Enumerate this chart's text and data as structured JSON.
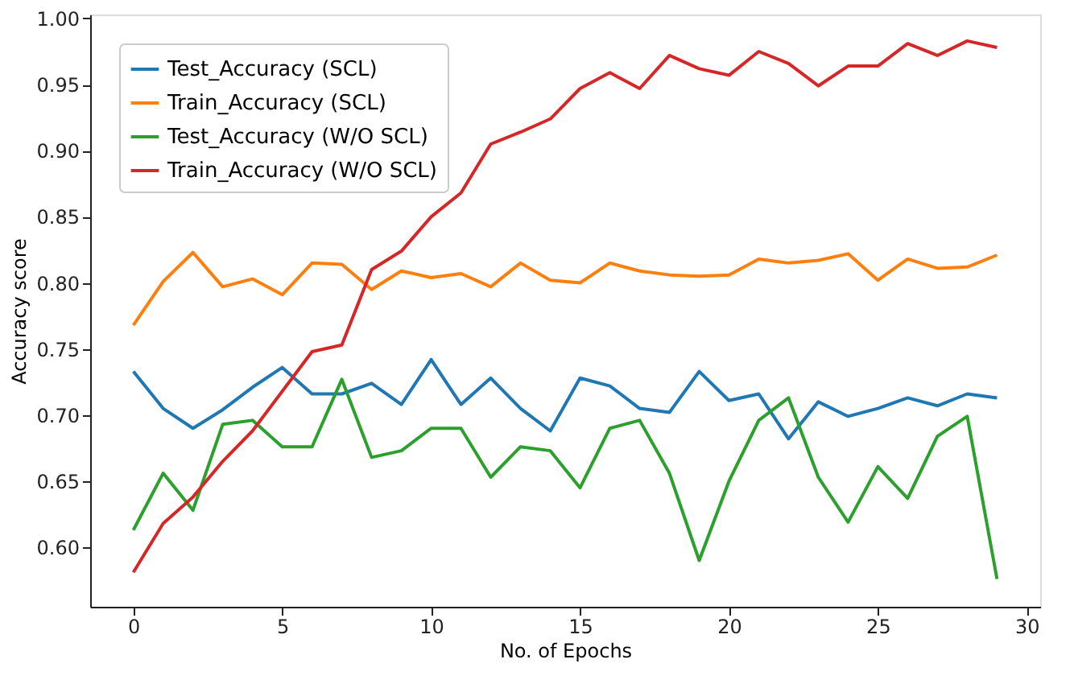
{
  "chart_data": {
    "type": "line",
    "xlabel": "No. of Epochs",
    "ylabel": "Accuracy score",
    "x": [
      0,
      1,
      2,
      3,
      4,
      5,
      6,
      7,
      8,
      9,
      10,
      11,
      12,
      13,
      14,
      15,
      16,
      17,
      18,
      19,
      20,
      21,
      22,
      23,
      24,
      25,
      26,
      27,
      28,
      29
    ],
    "xlim": [
      -1.45,
      30.45
    ],
    "xticks": [
      0,
      5,
      10,
      15,
      20,
      25,
      30
    ],
    "ylim": [
      0.555,
      1.003
    ],
    "yticks": [
      {
        "value": 0.6,
        "label": "0.60"
      },
      {
        "value": 0.65,
        "label": "0.65"
      },
      {
        "value": 0.7,
        "label": "0.70"
      },
      {
        "value": 0.75,
        "label": "0.75"
      },
      {
        "value": 0.8,
        "label": "0.80"
      },
      {
        "value": 0.85,
        "label": "0.85"
      },
      {
        "value": 0.9,
        "label": "0.90"
      },
      {
        "value": 0.95,
        "label": "0.95"
      },
      {
        "value": 1.0,
        "label": "1.00"
      }
    ],
    "grid": false,
    "legend": "top left",
    "marker": "none",
    "line_style": "solid",
    "series": [
      {
        "name": "Test_Accuracy (SCL)",
        "color": "#1f77b4",
        "values": [
          0.733,
          0.705,
          0.69,
          0.704,
          0.721,
          0.736,
          0.716,
          0.716,
          0.724,
          0.708,
          0.742,
          0.708,
          0.728,
          0.705,
          0.688,
          0.728,
          0.722,
          0.705,
          0.702,
          0.733,
          0.711,
          0.716,
          0.682,
          0.71,
          0.699,
          0.705,
          0.713,
          0.707,
          0.716,
          0.713
        ]
      },
      {
        "name": "Train_Accuracy (SCL)",
        "color": "#ff7f0e",
        "values": [
          0.768,
          0.801,
          0.823,
          0.797,
          0.803,
          0.791,
          0.815,
          0.814,
          0.795,
          0.809,
          0.804,
          0.807,
          0.797,
          0.815,
          0.802,
          0.8,
          0.815,
          0.809,
          0.806,
          0.805,
          0.806,
          0.818,
          0.815,
          0.817,
          0.822,
          0.802,
          0.818,
          0.811,
          0.812,
          0.821
        ]
      },
      {
        "name": "Test_Accuracy (W/O SCL)",
        "color": "#2ca02c",
        "values": [
          0.613,
          0.656,
          0.628,
          0.693,
          0.696,
          0.676,
          0.676,
          0.727,
          0.668,
          0.673,
          0.69,
          0.69,
          0.653,
          0.676,
          0.673,
          0.645,
          0.69,
          0.696,
          0.656,
          0.59,
          0.65,
          0.696,
          0.713,
          0.653,
          0.619,
          0.661,
          0.637,
          0.684,
          0.699,
          0.576
        ]
      },
      {
        "name": "Train_Accuracy (W/O SCL)",
        "color": "#d62728",
        "values": [
          0.581,
          0.618,
          0.638,
          0.665,
          0.688,
          0.718,
          0.748,
          0.753,
          0.81,
          0.824,
          0.85,
          0.868,
          0.905,
          0.914,
          0.924,
          0.947,
          0.959,
          0.947,
          0.972,
          0.962,
          0.957,
          0.975,
          0.966,
          0.949,
          0.964,
          0.964,
          0.981,
          0.972,
          0.983,
          0.978
        ]
      }
    ]
  }
}
